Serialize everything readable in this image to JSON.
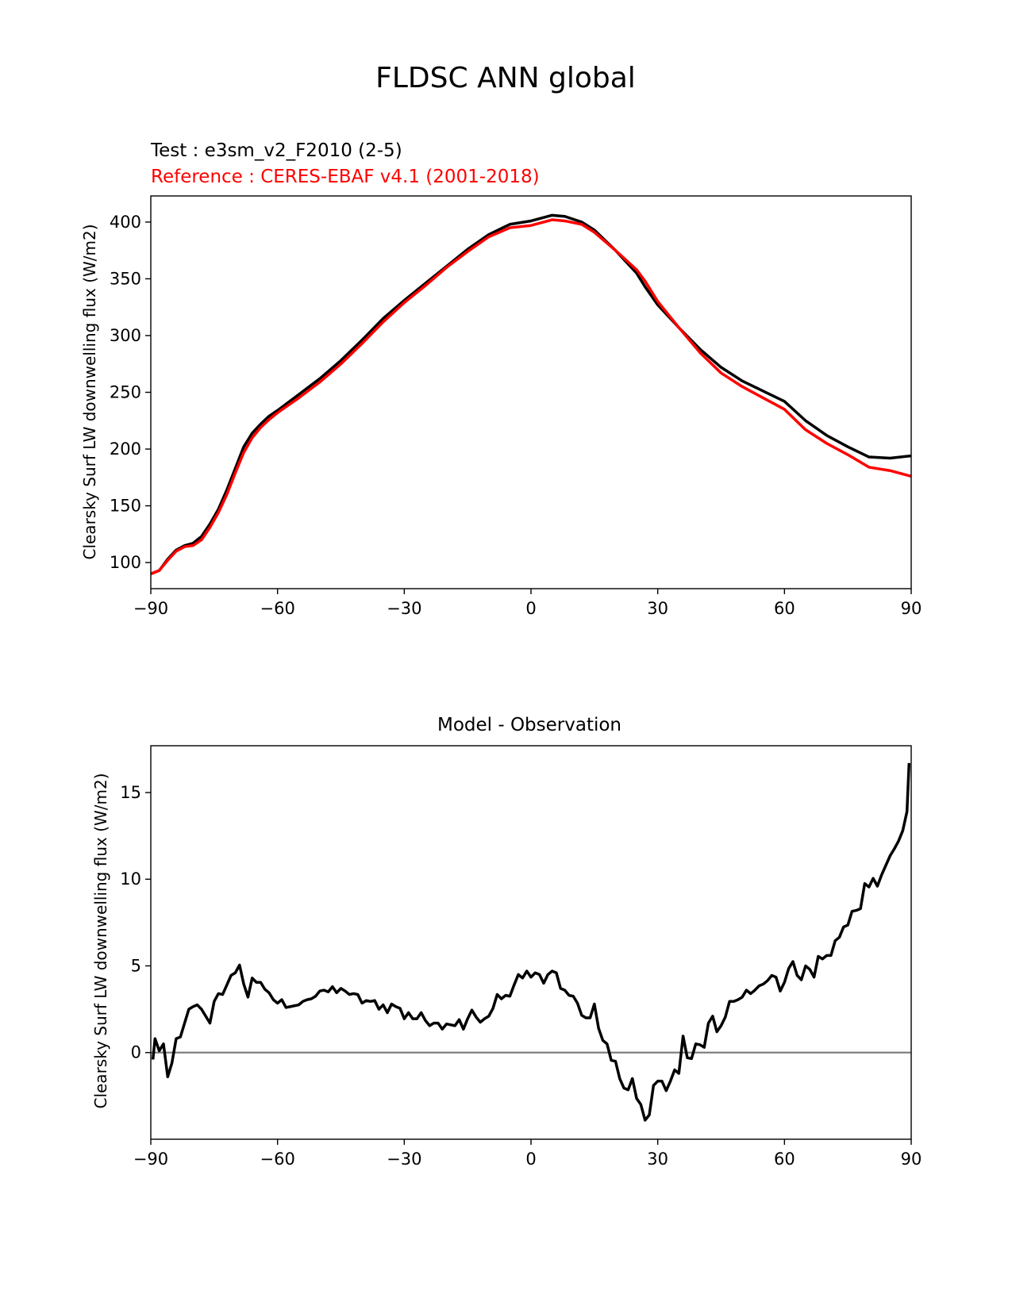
{
  "figure": {
    "title": "FLDSC ANN global"
  },
  "chart_data": [
    {
      "type": "line",
      "title": "",
      "test_label": "Test : e3sm_v2_F2010 (2-5)",
      "reference_label": "Reference : CERES-EBAF v4.1 (2001-2018)",
      "xlabel": "",
      "ylabel": "Clearsky Surf LW downwelling flux (W/m2)",
      "xlim": [
        -90,
        90
      ],
      "ylim": [
        77,
        423
      ],
      "xticks": [
        -90,
        -60,
        -30,
        0,
        30,
        60,
        90
      ],
      "xtick_labels": [
        "−90",
        "−60",
        "−30",
        "0",
        "30",
        "60",
        "90"
      ],
      "yticks": [
        100,
        150,
        200,
        250,
        300,
        350,
        400
      ],
      "yticks_labels": [
        "100",
        "150",
        "200",
        "250",
        "300",
        "350",
        "400"
      ],
      "grid": false,
      "colors": {
        "test": "#000000",
        "reference": "#ff0000"
      },
      "series": [
        {
          "key": "test",
          "color": "#000000",
          "x": [
            -90,
            -88,
            -86,
            -84,
            -82,
            -80,
            -78,
            -76,
            -74,
            -72,
            -70,
            -68,
            -66,
            -64,
            -62,
            -60,
            -55,
            -50,
            -45,
            -40,
            -35,
            -30,
            -25,
            -20,
            -15,
            -10,
            -5,
            0,
            5,
            8,
            12,
            15,
            20,
            25,
            27,
            30,
            35,
            40,
            45,
            50,
            55,
            60,
            65,
            70,
            75,
            80,
            85,
            90
          ],
          "y": [
            90,
            93,
            103,
            111,
            115,
            117,
            123,
            134,
            147,
            164,
            183,
            202,
            214,
            222,
            229,
            234,
            248,
            262,
            278,
            296,
            315,
            331,
            346,
            361,
            376,
            389,
            398,
            401,
            406,
            405,
            400,
            393,
            375,
            355,
            343,
            327,
            307,
            288,
            272,
            260,
            251,
            242,
            225,
            212,
            202,
            193,
            192,
            194
          ]
        },
        {
          "key": "reference",
          "color": "#ff0000",
          "x": [
            -90,
            -88,
            -86,
            -84,
            -82,
            -80,
            -78,
            -76,
            -74,
            -72,
            -70,
            -68,
            -66,
            -64,
            -62,
            -60,
            -55,
            -50,
            -45,
            -40,
            -35,
            -30,
            -25,
            -20,
            -15,
            -10,
            -5,
            0,
            5,
            8,
            12,
            15,
            20,
            25,
            27,
            30,
            35,
            40,
            45,
            50,
            55,
            60,
            65,
            70,
            75,
            80,
            85,
            90
          ],
          "y": [
            90,
            93,
            102,
            110,
            114,
            115,
            120,
            131,
            144,
            160,
            179,
            197,
            210,
            219,
            226,
            232,
            245,
            259,
            275,
            293,
            312,
            329,
            344,
            360,
            374,
            387,
            395,
            397,
            402,
            401,
            398,
            391,
            375,
            358,
            348,
            330,
            307,
            285,
            267,
            255,
            245,
            235,
            217,
            205,
            195,
            184,
            181,
            176
          ]
        }
      ]
    },
    {
      "type": "line",
      "title": "Model - Observation",
      "xlabel": "",
      "ylabel": "Clearsky Surf LW downwelling flux (W/m2)",
      "xlim": [
        -90,
        90
      ],
      "ylim": [
        -5,
        17.7
      ],
      "xticks": [
        -90,
        -60,
        -30,
        0,
        30,
        60,
        90
      ],
      "xtick_labels": [
        "−90",
        "−60",
        "−30",
        "0",
        "30",
        "60",
        "90"
      ],
      "yticks": [
        0,
        5,
        10,
        15
      ],
      "yticks_labels": [
        "0",
        "5",
        "10",
        "15"
      ],
      "grid": false,
      "zero_line_color": "#808080",
      "series": [
        {
          "key": "difference",
          "color": "#000000",
          "x": [
            -89.5,
            -89,
            -88,
            -87,
            -86,
            -85,
            -84,
            -83,
            -82,
            -81,
            -80,
            -79,
            -78,
            -77,
            -76,
            -75,
            -74,
            -73,
            -72,
            -71,
            -70,
            -69,
            -68,
            -67,
            -66,
            -65,
            -64,
            -63,
            -62,
            -61,
            -60,
            -59,
            -58,
            -57,
            -56,
            -55,
            -54,
            -53,
            -52,
            -51,
            -50,
            -49,
            -48,
            -47,
            -46,
            -45,
            -44,
            -43,
            -42,
            -41,
            -40,
            -39,
            -38,
            -37,
            -36,
            -35,
            -34,
            -33,
            -32,
            -31,
            -30,
            -29,
            -28,
            -27,
            -26,
            -25,
            -24,
            -23,
            -22,
            -21,
            -20,
            -19,
            -18,
            -17,
            -16,
            -15,
            -14,
            -13,
            -12,
            -11,
            -10,
            -9,
            -8,
            -7,
            -6,
            -5,
            -4,
            -3,
            -2,
            -1,
            0,
            1,
            2,
            3,
            4,
            5,
            6,
            7,
            8,
            9,
            10,
            11,
            12,
            13,
            14,
            15,
            16,
            17,
            18,
            19,
            20,
            21,
            22,
            23,
            24,
            25,
            26,
            27,
            28,
            29,
            30,
            31,
            32,
            33,
            34,
            35,
            36,
            37,
            38,
            39,
            40,
            41,
            42,
            43,
            44,
            45,
            46,
            47,
            48,
            49,
            50,
            51,
            52,
            53,
            54,
            55,
            56,
            57,
            58,
            59,
            60,
            61,
            62,
            63,
            64,
            65,
            66,
            67,
            68,
            69,
            70,
            71,
            72,
            73,
            74,
            75,
            76,
            77,
            78,
            79,
            80,
            81,
            82,
            83,
            84,
            85,
            86,
            87,
            88,
            89,
            89.5
          ],
          "y": [
            -0.4,
            0.8,
            0.1,
            0.5,
            -1.4,
            -0.6,
            0.8,
            0.9,
            1.7,
            2.5,
            2.65,
            2.75,
            2.5,
            2.1,
            1.7,
            2.95,
            3.4,
            3.35,
            3.9,
            4.45,
            4.6,
            5.05,
            3.95,
            3.2,
            4.3,
            4.05,
            4.05,
            3.65,
            3.45,
            3.05,
            2.85,
            3.05,
            2.6,
            2.65,
            2.7,
            2.75,
            2.95,
            3.05,
            3.1,
            3.25,
            3.55,
            3.6,
            3.5,
            3.8,
            3.45,
            3.7,
            3.55,
            3.35,
            3.4,
            3.35,
            2.85,
            3.0,
            2.95,
            3.0,
            2.5,
            2.75,
            2.3,
            2.8,
            2.65,
            2.55,
            1.95,
            2.3,
            1.95,
            1.95,
            2.3,
            1.85,
            1.55,
            1.7,
            1.7,
            1.35,
            1.65,
            1.6,
            1.55,
            1.9,
            1.35,
            1.95,
            2.45,
            2.05,
            1.75,
            1.95,
            2.1,
            2.55,
            3.35,
            3.1,
            3.3,
            3.25,
            3.9,
            4.5,
            4.3,
            4.7,
            4.35,
            4.6,
            4.5,
            4.0,
            4.5,
            4.7,
            4.6,
            3.7,
            3.6,
            3.3,
            3.25,
            2.85,
            2.15,
            2.0,
            2.0,
            2.8,
            1.4,
            0.7,
            0.5,
            -0.45,
            -0.5,
            -1.5,
            -2.05,
            -2.15,
            -1.5,
            -2.65,
            -3.0,
            -3.9,
            -3.6,
            -1.9,
            -1.65,
            -1.65,
            -2.2,
            -1.65,
            -1.0,
            -1.2,
            0.95,
            -0.3,
            -0.35,
            0.5,
            0.45,
            0.3,
            1.7,
            2.1,
            1.2,
            1.55,
            2.05,
            2.95,
            2.95,
            3.05,
            3.2,
            3.6,
            3.4,
            3.6,
            3.85,
            3.95,
            4.15,
            4.45,
            4.35,
            3.55,
            4.05,
            4.85,
            5.25,
            4.45,
            4.2,
            5.0,
            4.8,
            4.35,
            5.55,
            5.4,
            5.6,
            5.6,
            6.45,
            6.65,
            7.25,
            7.35,
            8.15,
            8.2,
            8.3,
            9.75,
            9.55,
            10.05,
            9.6,
            10.25,
            10.8,
            11.35,
            11.75,
            12.2,
            12.8,
            13.9,
            16.7
          ]
        }
      ]
    }
  ]
}
